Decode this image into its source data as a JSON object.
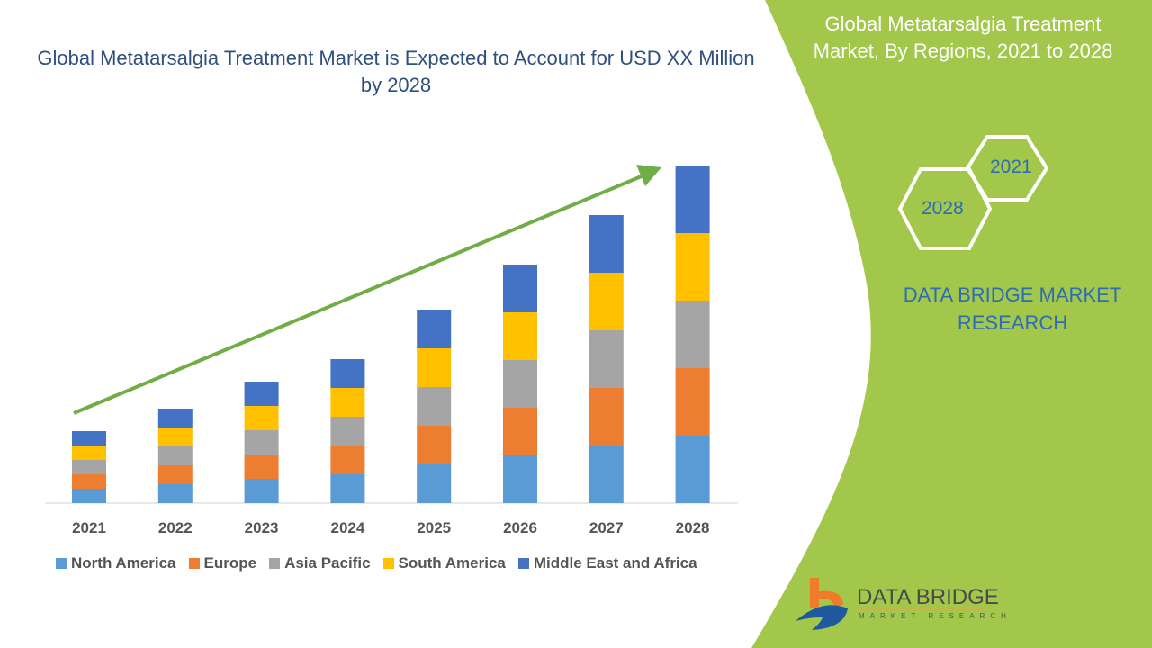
{
  "title": "Global Metatarsalgia Treatment Market is Expected to Account for USD XX Million by 2028",
  "side_panel": {
    "title": "Global Metatarsalgia Treatment Market, By Regions, 2021 to 2028",
    "hex_labels": [
      "2021",
      "2028"
    ],
    "brand": "DATA BRIDGE MARKET RESEARCH",
    "logo_text": "DATA BRIDGE",
    "logo_subtext": "MARKET RESEARCH",
    "color": "#a3c74b"
  },
  "chart_data": {
    "type": "bar",
    "stacked": true,
    "categories": [
      "2021",
      "2022",
      "2023",
      "2024",
      "2025",
      "2026",
      "2027",
      "2028"
    ],
    "series": [
      {
        "name": "North America",
        "color": "#5b9bd5",
        "values": [
          1.6,
          2.1,
          2.7,
          3.2,
          4.3,
          5.3,
          6.4,
          7.5
        ]
      },
      {
        "name": "Europe",
        "color": "#ed7d31",
        "values": [
          1.6,
          2.1,
          2.7,
          3.2,
          4.3,
          5.3,
          6.4,
          7.5
        ]
      },
      {
        "name": "Asia Pacific",
        "color": "#a5a5a5",
        "values": [
          1.6,
          2.1,
          2.7,
          3.2,
          4.3,
          5.3,
          6.4,
          7.5
        ]
      },
      {
        "name": "South America",
        "color": "#ffc000",
        "values": [
          1.6,
          2.1,
          2.7,
          3.2,
          4.3,
          5.3,
          6.4,
          7.5
        ]
      },
      {
        "name": "Middle East and Africa",
        "color": "#4472c4",
        "values": [
          1.6,
          2.1,
          2.7,
          3.2,
          4.3,
          5.3,
          6.4,
          7.5
        ]
      }
    ],
    "legend": "bottom",
    "grid": false,
    "trend_arrow_color": "#70ad47"
  }
}
